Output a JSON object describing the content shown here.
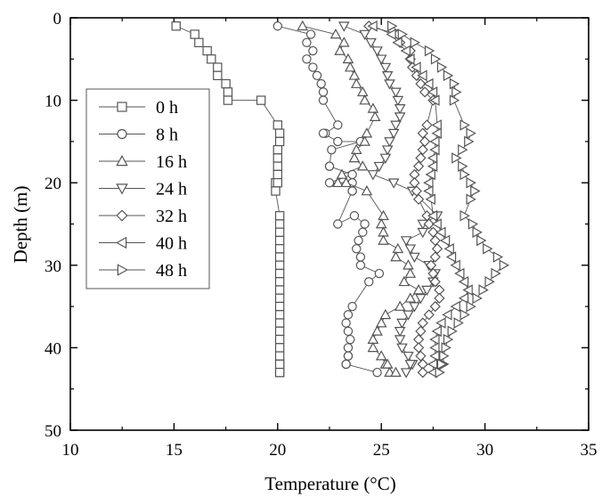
{
  "chart_data": {
    "type": "line",
    "xlabel": "Temperature (°C)",
    "ylabel": "Depth (m)",
    "xlim": [
      10,
      35
    ],
    "ylim": [
      50,
      0
    ],
    "xticks": [
      "10",
      "15",
      "20",
      "25",
      "30",
      "35"
    ],
    "yticks": [
      "0",
      "10",
      "20",
      "30",
      "40",
      "50"
    ],
    "grid": false,
    "legend_placement": "left-middle",
    "y_axis_inverted": true,
    "colors": {
      "marker": "#555555",
      "line": "#555555",
      "axis": "#000000"
    },
    "series": [
      {
        "name": "0 h",
        "marker": "square",
        "x": [
          15.1,
          16.0,
          16.2,
          16.6,
          16.8,
          17.1,
          17.1,
          17.5,
          17.6,
          17.6,
          19.2,
          20.0,
          20.1,
          20.1,
          20.0,
          20.0,
          20.0,
          20.0,
          19.9,
          20.0,
          19.9,
          20.1,
          20.1,
          20.1,
          20.1,
          20.1,
          20.1,
          20.1,
          20.1,
          20.1,
          20.1,
          20.1,
          20.1,
          20.1,
          20.1,
          20.1,
          20.1,
          20.1,
          20.1,
          20.1,
          20.1,
          20.1,
          20.1
        ],
        "y": [
          1,
          2,
          3,
          4,
          5,
          6,
          7,
          8,
          9,
          10,
          10,
          13,
          14,
          15,
          16,
          17,
          18,
          19,
          20,
          20,
          21,
          24,
          25,
          26,
          27,
          28,
          29,
          30,
          31,
          32,
          33,
          34,
          35,
          36,
          37,
          38,
          39,
          40,
          41,
          42,
          43,
          42,
          43
        ]
      },
      {
        "name": "8 h",
        "marker": "circle",
        "x": [
          20.0,
          21.6,
          21.4,
          21.7,
          21.4,
          21.7,
          21.9,
          22.1,
          22.2,
          22.2,
          22.9,
          22.3,
          22.2,
          22.9,
          24.0,
          22.6,
          22.5,
          22.5,
          23.6,
          22.5,
          23.6,
          23.6,
          23.6,
          22.9,
          23.7,
          24.2,
          24.1,
          23.9,
          23.8,
          24.0,
          24.0,
          24.9,
          24.4,
          23.6,
          23.4,
          23.3,
          23.4,
          23.5,
          23.4,
          23.4,
          23.4,
          23.3,
          23.3,
          24.8
        ],
        "y": [
          1,
          2,
          3,
          4,
          5,
          6,
          7,
          8,
          9,
          10,
          13,
          14,
          14,
          15,
          15,
          16,
          18,
          18,
          19,
          20,
          20,
          21,
          21,
          25,
          24,
          25,
          26,
          27,
          28,
          29,
          30,
          31,
          32,
          35,
          36,
          37,
          38,
          39,
          40,
          41,
          41,
          42,
          42,
          43
        ]
      },
      {
        "name": "16 h",
        "marker": "triangle-up",
        "x": [
          21.2,
          22.8,
          23.2,
          23.0,
          23.4,
          23.5,
          23.7,
          23.8,
          24.1,
          24.2,
          24.6,
          24.7,
          24.3,
          24.2,
          23.8,
          23.7,
          24.1,
          23.1,
          22.9,
          23.3,
          24.3,
          25.1,
          25.0,
          25.1,
          25.1,
          25.8,
          25.7,
          26.3,
          26.4,
          26.1,
          26.8,
          26.4,
          25.9,
          25.2,
          25.0,
          24.8,
          24.6,
          24.6,
          25.0,
          25.2,
          25.3,
          25.4,
          25.7
        ],
        "y": [
          1,
          2,
          3,
          4,
          5,
          6,
          7,
          8,
          9,
          10,
          11,
          12,
          14,
          15,
          16,
          17,
          18,
          19,
          20,
          20,
          21,
          24,
          25,
          26,
          27,
          28,
          29,
          30,
          31,
          32,
          33,
          34,
          35,
          36,
          37,
          38,
          39,
          40,
          41,
          42,
          42,
          43,
          43
        ]
      },
      {
        "name": "24 h",
        "marker": "triangle-down",
        "x": [
          23.2,
          24.2,
          24.5,
          24.8,
          25.0,
          25.2,
          25.3,
          25.4,
          25.7,
          25.8,
          25.9,
          25.9,
          25.7,
          25.6,
          25.4,
          25.3,
          25.2,
          24.9,
          24.6,
          25.6,
          26.5,
          27.7,
          27.0,
          27.0,
          26.2,
          26.4,
          26.6,
          27.3,
          27.6,
          27.5,
          27.2,
          26.9,
          26.6,
          26.3,
          26.0,
          25.9,
          25.9,
          26.0,
          26.3,
          26.5,
          26.4,
          26.2
        ],
        "y": [
          1,
          2,
          3,
          4,
          5,
          6,
          7,
          8,
          9,
          10,
          11,
          12,
          13,
          14,
          15,
          16,
          17,
          18,
          19,
          20,
          21,
          24,
          25,
          26,
          27,
          28,
          29,
          30,
          31,
          32,
          33,
          34,
          35,
          36,
          37,
          38,
          39,
          40,
          41,
          42,
          42,
          43
        ]
      },
      {
        "name": "32 h",
        "marker": "diamond",
        "x": [
          24.4,
          25.8,
          25.9,
          26.4,
          26.4,
          26.5,
          26.7,
          26.9,
          27.1,
          27.5,
          27.2,
          27.0,
          27.1,
          27.0,
          26.9,
          26.8,
          26.6,
          26.6,
          26.7,
          26.8,
          27.2,
          27.3,
          27.5,
          27.6,
          27.7,
          27.6,
          27.4,
          27.5,
          27.6,
          27.8,
          27.8,
          27.6,
          27.3,
          27.0,
          26.9,
          26.8,
          26.8,
          26.9,
          27.0,
          27.0,
          27.0
        ],
        "y": [
          1,
          2,
          3,
          4,
          5,
          6,
          7,
          8,
          9,
          10,
          13,
          14,
          15,
          16,
          17,
          18,
          19,
          20,
          21,
          22,
          24,
          25,
          26,
          27,
          28,
          29,
          30,
          31,
          32,
          33,
          34,
          35,
          36,
          37,
          38,
          39,
          40,
          41,
          42,
          42,
          43
        ]
      },
      {
        "name": "40 h",
        "marker": "triangle-left",
        "x": [
          24.6,
          25.5,
          25.8,
          26.2,
          26.4,
          26.7,
          27.0,
          27.3,
          27.5,
          27.6,
          27.7,
          27.7,
          27.6,
          27.6,
          27.5,
          27.5,
          27.4,
          27.3,
          27.3,
          27.4,
          27.5,
          27.7,
          27.9,
          28.1,
          28.3,
          28.4,
          28.6,
          28.8,
          29.0,
          29.2,
          29.0,
          28.6,
          28.2,
          27.9,
          27.7,
          27.6,
          27.6,
          27.6,
          27.6,
          27.5,
          27.5
        ],
        "y": [
          1,
          2,
          3,
          4,
          5,
          6,
          7,
          8,
          9,
          10,
          13,
          14,
          15,
          16,
          17,
          18,
          19,
          20,
          21,
          22,
          24,
          25,
          26,
          27,
          28,
          29,
          30,
          31,
          32,
          33,
          34,
          35,
          36,
          37,
          38,
          39,
          40,
          41,
          42,
          42,
          43
        ]
      },
      {
        "name": "48 h",
        "marker": "triangle-right",
        "x": [
          25.5,
          26.0,
          26.6,
          27.3,
          27.6,
          27.9,
          28.2,
          28.5,
          28.6,
          28.5,
          29.0,
          29.3,
          29.2,
          28.9,
          28.6,
          28.9,
          29.0,
          29.3,
          29.5,
          29.3,
          29.0,
          29.4,
          29.6,
          29.8,
          30.1,
          30.6,
          30.9,
          30.5,
          30.2,
          29.9,
          29.6,
          29.3,
          29.0,
          28.7,
          28.4,
          28.2,
          28.1,
          28.0,
          28.0,
          27.9,
          27.8
        ],
        "y": [
          1,
          2,
          3,
          4,
          5,
          6,
          7,
          8,
          9,
          10,
          13,
          14,
          15,
          16,
          17,
          18,
          19,
          20,
          21,
          22,
          24,
          25,
          26,
          27,
          28,
          29,
          30,
          31,
          32,
          33,
          34,
          35,
          36,
          37,
          38,
          39,
          40,
          41,
          42,
          42,
          43
        ]
      }
    ]
  }
}
